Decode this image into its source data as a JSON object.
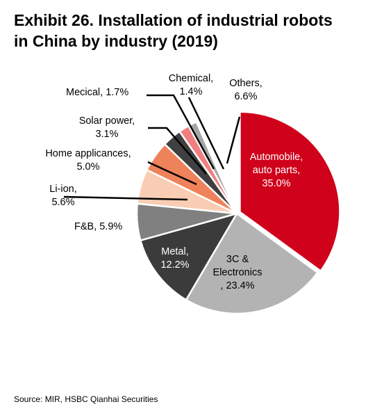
{
  "title_lines": [
    "Exhibit 26. Installation of industrial robots",
    "in China by industry (2019)"
  ],
  "source": "Source: MIR, HSBC Qianhai Securities",
  "chart_data": {
    "type": "pie",
    "start_angle_deg": 0,
    "direction": "clockwise",
    "slices": [
      {
        "label_lines": [
          "Automobile,",
          "auto parts,",
          "35.0%"
        ],
        "value": 35.0,
        "color": "#d0021b",
        "label_color": "#ffffff"
      },
      {
        "label_lines": [
          "3C &",
          "Electronics",
          ", 23.4%"
        ],
        "value": 23.4,
        "color": "#b3b3b3",
        "label_color": "#000000"
      },
      {
        "label_lines": [
          "Metal,",
          "12.2%"
        ],
        "value": 12.2,
        "color": "#3b3b3b",
        "label_color": "#ffffff"
      },
      {
        "label_lines": [
          "F&B, 5.9%"
        ],
        "value": 5.9,
        "color": "#808080",
        "label_color": "#000000"
      },
      {
        "label_lines": [
          "Li-ion,",
          "5.6%"
        ],
        "value": 5.6,
        "color": "#f9cdb4",
        "label_color": "#000000"
      },
      {
        "label_lines": [
          "Home applicances,",
          "5.0%"
        ],
        "value": 5.0,
        "color": "#ee825a",
        "label_color": "#000000"
      },
      {
        "label_lines": [
          "Solar power,",
          "3.1%"
        ],
        "value": 3.1,
        "color": "#404040",
        "label_color": "#000000"
      },
      {
        "label_lines": [
          "Mecical, 1.7%"
        ],
        "value": 1.7,
        "color": "#f08080",
        "label_color": "#000000"
      },
      {
        "label_lines": [
          "Chemical,",
          "1.4%"
        ],
        "value": 1.4,
        "color": "#a6a6a6",
        "label_color": "#000000"
      },
      {
        "label_lines": [
          "Others,",
          "6.6%"
        ],
        "value": 6.6,
        "color": "#ffffff",
        "label_color": "#000000"
      }
    ]
  }
}
